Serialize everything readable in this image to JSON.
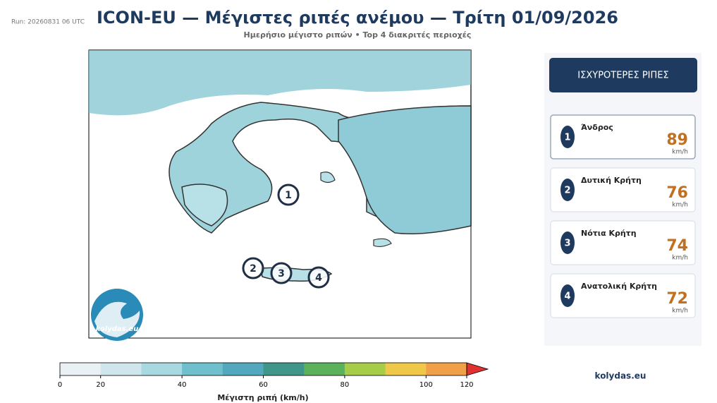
{
  "run": "Run: 20260831 06 UTC",
  "title": "ICON-EU — Μέγιστες ριπές ανέμου — Τρίτη 01/09/2026",
  "subtitle": "Ημερήσιο μέγιστο ριπών • Top 4 διακριτές περιοχές",
  "logo": "kolydas.eu",
  "panel": {
    "title": "ΙΣΧΥΡΟΤΕΡΕΣ ΡΙΠΕΣ",
    "items": [
      {
        "rank": "1",
        "name": "Άνδρος",
        "value": 89,
        "unit": "km/h"
      },
      {
        "rank": "2",
        "name": "Δυτική Κρήτη",
        "value": 76,
        "unit": "km/h"
      },
      {
        "rank": "3",
        "name": "Νότια Κρήτη",
        "value": 74,
        "unit": "km/h"
      },
      {
        "rank": "4",
        "name": "Ανατολική Κρήτη",
        "value": 72,
        "unit": "km/h"
      }
    ]
  },
  "footer": "kolydas.eu",
  "colorbar": {
    "label": "Μέγιστη ριπή (km/h)",
    "bounds": [
      0,
      20,
      30,
      40,
      50,
      60,
      70,
      80,
      90,
      100,
      120
    ],
    "colors": [
      "#eaf1f5",
      "#cfe6ec",
      "#a8d8e0",
      "#6fc0cc",
      "#52a8bd",
      "#3f978a",
      "#5cb25a",
      "#a6cc4a",
      "#efc84a",
      "#f0a048"
    ],
    "extend_color": "#e03030",
    "ticks": [
      0,
      20,
      40,
      60,
      80,
      100,
      120
    ]
  }
}
